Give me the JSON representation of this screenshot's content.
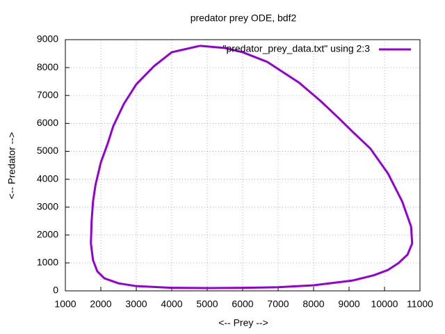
{
  "chart_data": {
    "type": "line",
    "title": "predator prey ODE, bdf2",
    "x_label": "<-- Prey -->",
    "y_label": "<-- Predator -->",
    "xlim": [
      1000,
      11000
    ],
    "xticks": [
      1000,
      2000,
      3000,
      4000,
      5000,
      6000,
      7000,
      8000,
      9000,
      10000,
      11000
    ],
    "ylim": [
      0,
      9000
    ],
    "yticks": [
      0,
      1000,
      2000,
      3000,
      4000,
      5000,
      6000,
      7000,
      8000,
      9000
    ],
    "grid": true,
    "legend": "top-right",
    "series": [
      {
        "name": "\"predator_prey_data.txt\" using 2:3",
        "color": "#9400d3",
        "x": [
          4800,
          5500,
          6000,
          6700,
          7600,
          8200,
          8700,
          9100,
          9600,
          10100,
          10500,
          10750,
          10780,
          10650,
          10400,
          10100,
          9700,
          9100,
          8000,
          7000,
          6000,
          5000,
          4000,
          3000,
          2500,
          2100,
          1900,
          1780,
          1720,
          1740,
          1780,
          1850,
          2000,
          2200,
          2350,
          2650,
          3000,
          3500,
          4000,
          4800
        ],
        "values": [
          8780,
          8700,
          8550,
          8200,
          7450,
          6800,
          6200,
          5700,
          5100,
          4200,
          3200,
          2300,
          1700,
          1300,
          1000,
          750,
          560,
          370,
          200,
          130,
          110,
          100,
          110,
          170,
          270,
          450,
          700,
          1100,
          1700,
          2500,
          3200,
          3800,
          4600,
          5300,
          5900,
          6700,
          7400,
          8050,
          8550,
          8780
        ]
      }
    ]
  }
}
